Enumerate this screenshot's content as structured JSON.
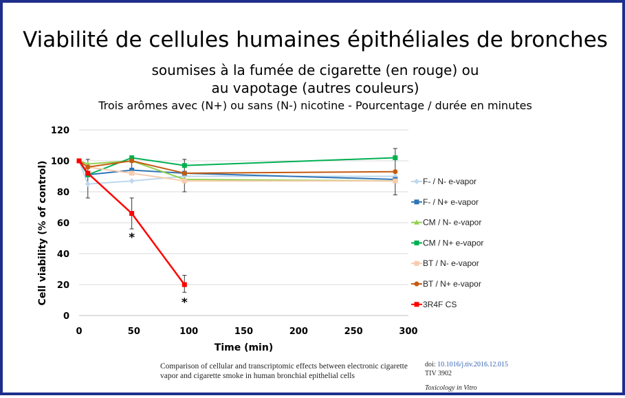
{
  "title": "Viabilité de cellules humaines épithéliales de bronches",
  "subtitle_line1": "soumises à la fumée de cigarette (en rouge) ou",
  "subtitle_line2": "au vapotage (autres couleurs)",
  "subtitle_line3": "Trois arômes avec (N+) ou sans (N-) nicotine - Pourcentage / durée en minutes",
  "reference": {
    "title": "Comparison of cellular and transcriptomic effects between electronic cigarette vapor and cigarette smoke in human bronchial epithelial cells",
    "doi_label": "doi:",
    "doi": "10.1016/j.tiv.2016.12.015",
    "tiv": "TIV 3902",
    "journal": "Toxicology in Vitro"
  },
  "chart_data": {
    "type": "line",
    "xlabel": "Time (min)",
    "ylabel": "Cell viability   (% of control)",
    "xlim": [
      0,
      300
    ],
    "ylim": [
      0,
      120
    ],
    "xticks": [
      0,
      50,
      100,
      150,
      200,
      250,
      300
    ],
    "yticks": [
      0,
      20,
      40,
      60,
      80,
      100,
      120
    ],
    "legend_position": "right",
    "series": [
      {
        "name": "F- / N- e-vapor",
        "color": "#bdd7ee",
        "marker": "diamond",
        "x": [
          0,
          8,
          48,
          96,
          288
        ],
        "y": [
          100,
          85,
          87,
          90,
          90
        ]
      },
      {
        "name": "F- / N+ e-vapor",
        "color": "#2e75b6",
        "marker": "square",
        "x": [
          0,
          8,
          48,
          96,
          288
        ],
        "y": [
          100,
          91,
          94,
          92,
          88
        ]
      },
      {
        "name": "CM / N- e-vapor",
        "color": "#92d050",
        "marker": "triangle",
        "x": [
          0,
          8,
          48,
          96,
          288
        ],
        "y": [
          100,
          98,
          100,
          88,
          87
        ]
      },
      {
        "name": "CM / N+ e-vapor",
        "color": "#00b050",
        "marker": "square",
        "x": [
          0,
          8,
          48,
          96,
          288
        ],
        "y": [
          100,
          91,
          102,
          97,
          102
        ]
      },
      {
        "name": "BT / N- e-vapor",
        "color": "#f8cbad",
        "marker": "square",
        "x": [
          0,
          8,
          48,
          96,
          288
        ],
        "y": [
          100,
          96,
          92,
          87,
          87
        ]
      },
      {
        "name": "BT / N+ e-vapor",
        "color": "#c55a11",
        "marker": "circle",
        "x": [
          0,
          8,
          48,
          96,
          288
        ],
        "y": [
          100,
          96,
          100,
          92,
          93
        ]
      },
      {
        "name": "3R4F CS",
        "color": "#ff0000",
        "marker": "square",
        "x": [
          0,
          8,
          48,
          96
        ],
        "y": [
          100,
          92,
          66,
          20
        ]
      }
    ],
    "error_bars": [
      {
        "x": 8,
        "low": 76,
        "high": 101
      },
      {
        "x": 48,
        "low": 56,
        "high": 76
      },
      {
        "x": 48,
        "low": 93,
        "high": 103
      },
      {
        "x": 96,
        "low": 15,
        "high": 26
      },
      {
        "x": 96,
        "low": 80,
        "high": 101
      },
      {
        "x": 288,
        "low": 78,
        "high": 108
      }
    ],
    "annotations": [
      {
        "text": "*",
        "x": 48,
        "y": 48
      },
      {
        "text": "*",
        "x": 96,
        "y": 6
      }
    ]
  }
}
